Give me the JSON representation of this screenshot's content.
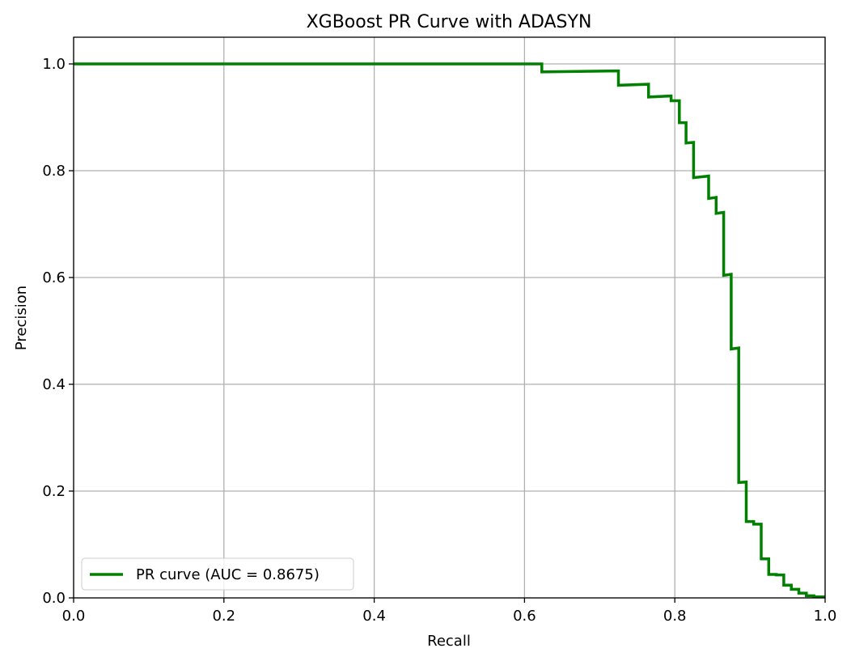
{
  "chart_data": {
    "type": "line",
    "title": "XGBoost PR Curve with ADASYN",
    "xlabel": "Recall",
    "ylabel": "Precision",
    "xlim": [
      0.0,
      1.0
    ],
    "ylim": [
      0.0,
      1.05
    ],
    "x_ticks": [
      "0.0",
      "0.2",
      "0.4",
      "0.6",
      "0.8",
      "1.0"
    ],
    "y_ticks": [
      "0.0",
      "0.2",
      "0.4",
      "0.6",
      "0.8",
      "1.0"
    ],
    "grid": true,
    "legend_position": "lower-left",
    "series": [
      {
        "name": "PR curve (AUC = 0.8675)",
        "color": "#008000",
        "step": true,
        "points": [
          [
            0.0,
            1.0
          ],
          [
            0.623,
            1.0
          ],
          [
            0.623,
            0.985
          ],
          [
            0.725,
            0.987
          ],
          [
            0.725,
            0.96
          ],
          [
            0.765,
            0.962
          ],
          [
            0.765,
            0.938
          ],
          [
            0.795,
            0.94
          ],
          [
            0.795,
            0.931
          ],
          [
            0.806,
            0.931
          ],
          [
            0.806,
            0.89
          ],
          [
            0.815,
            0.89
          ],
          [
            0.815,
            0.852
          ],
          [
            0.825,
            0.853
          ],
          [
            0.825,
            0.787
          ],
          [
            0.845,
            0.79
          ],
          [
            0.845,
            0.748
          ],
          [
            0.855,
            0.75
          ],
          [
            0.855,
            0.72
          ],
          [
            0.865,
            0.722
          ],
          [
            0.865,
            0.604
          ],
          [
            0.875,
            0.606
          ],
          [
            0.875,
            0.466
          ],
          [
            0.885,
            0.468
          ],
          [
            0.885,
            0.216
          ],
          [
            0.895,
            0.217
          ],
          [
            0.895,
            0.143
          ],
          [
            0.905,
            0.143
          ],
          [
            0.905,
            0.138
          ],
          [
            0.915,
            0.138
          ],
          [
            0.915,
            0.073
          ],
          [
            0.925,
            0.073
          ],
          [
            0.925,
            0.044
          ],
          [
            0.935,
            0.044
          ],
          [
            0.935,
            0.043
          ],
          [
            0.945,
            0.043
          ],
          [
            0.945,
            0.024
          ],
          [
            0.955,
            0.024
          ],
          [
            0.955,
            0.016
          ],
          [
            0.965,
            0.016
          ],
          [
            0.965,
            0.009
          ],
          [
            0.975,
            0.009
          ],
          [
            0.975,
            0.004
          ],
          [
            0.985,
            0.004
          ],
          [
            0.985,
            0.002
          ],
          [
            1.0,
            0.002
          ]
        ]
      }
    ]
  }
}
